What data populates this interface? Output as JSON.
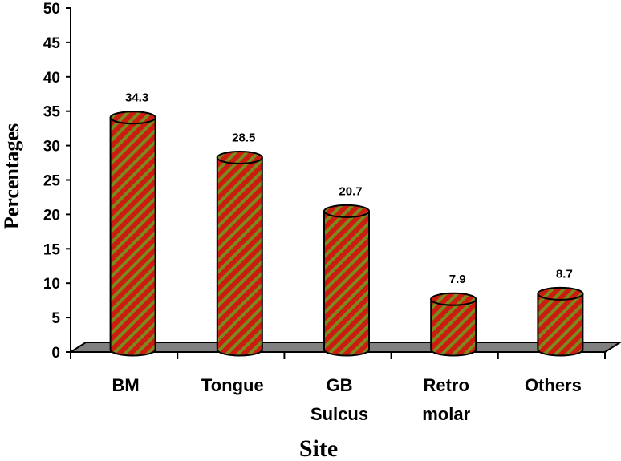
{
  "chart_data": {
    "type": "bar",
    "categories": [
      [
        "BM"
      ],
      [
        "Tongue"
      ],
      [
        "GB",
        "Sulcus"
      ],
      [
        "Retro",
        "molar"
      ],
      [
        "Others"
      ]
    ],
    "values": [
      34.3,
      28.5,
      20.7,
      7.9,
      8.7
    ],
    "value_labels": [
      "34.3",
      "28.5",
      "20.7",
      "7.9",
      "8.7"
    ],
    "title": "",
    "xlabel": "Site",
    "ylabel": "Percentages",
    "ylim": [
      0,
      50
    ],
    "yticks": [
      "0",
      "5",
      "10",
      "15",
      "20",
      "25",
      "30",
      "35",
      "40",
      "45",
      "50"
    ],
    "grid": false,
    "legend": "none",
    "style": "3d-cylinder",
    "colors": {
      "bar_fill": "#cc1b10",
      "bar_stripe": "#7a8a1c",
      "floor": "#808080",
      "axis": "#000000"
    }
  }
}
